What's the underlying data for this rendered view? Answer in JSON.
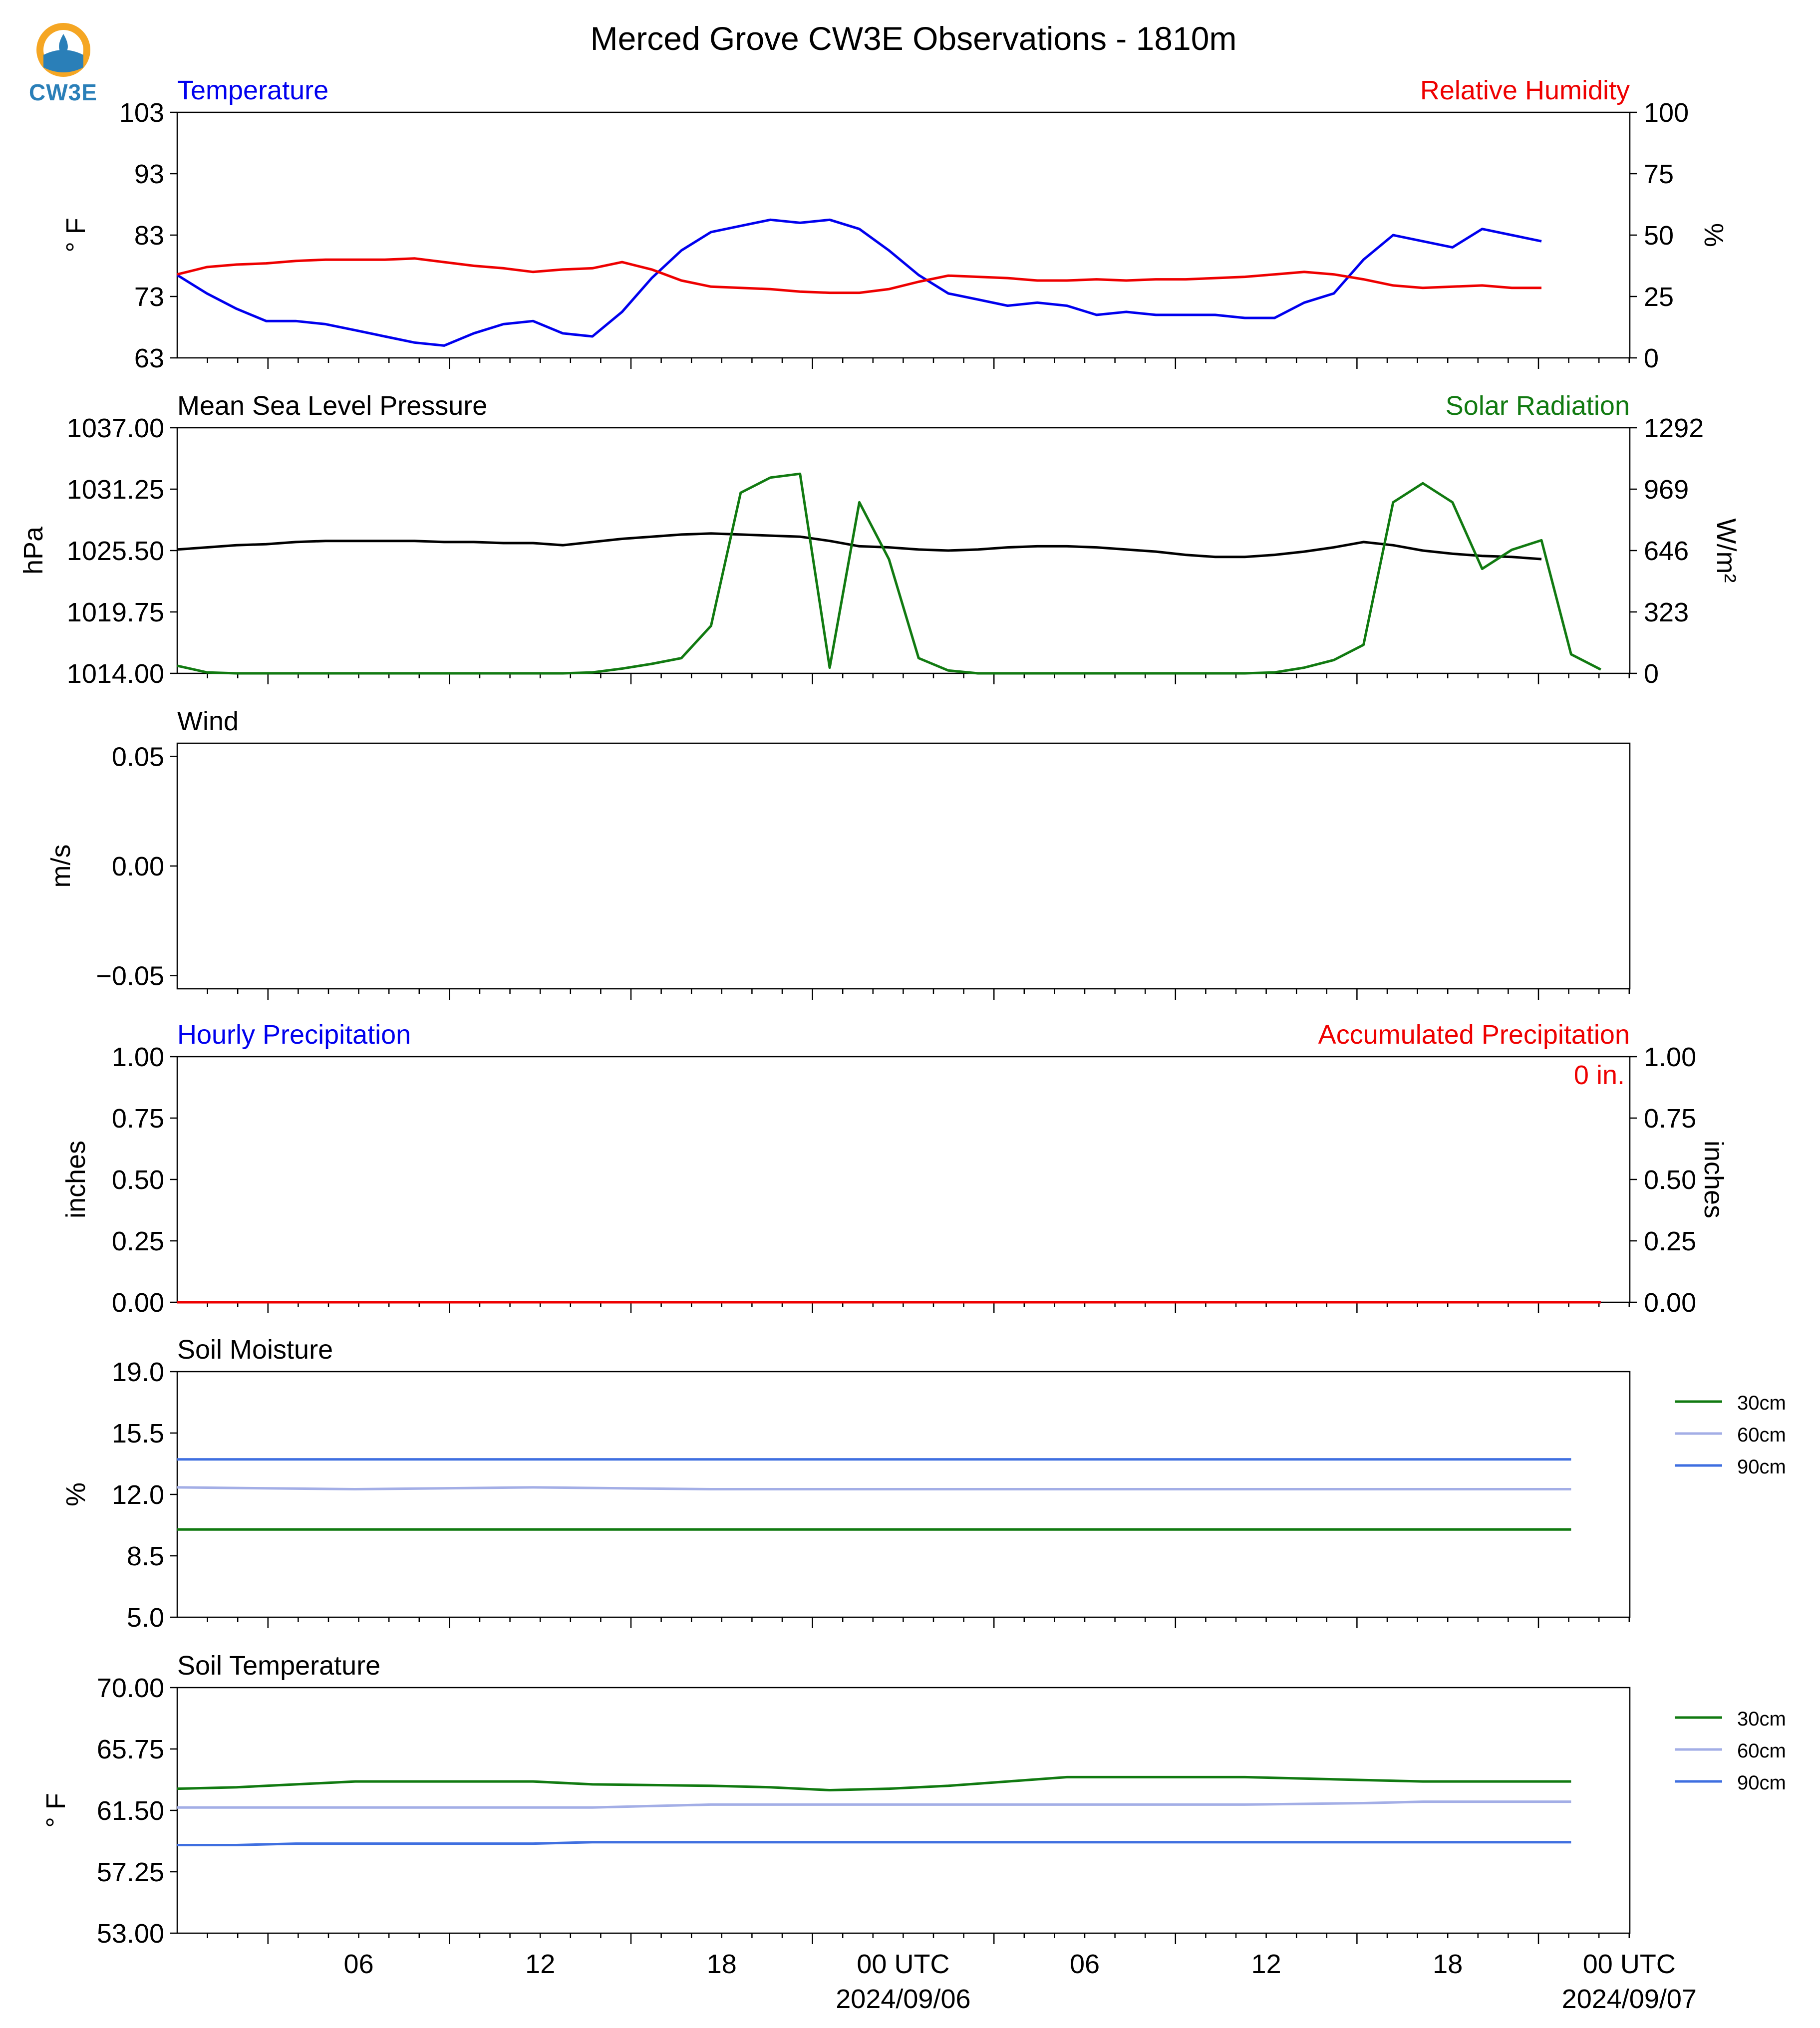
{
  "figure": {
    "title": "Merced Grove CW3E Observations - 1810m",
    "logo_text": "CW3E",
    "x_ticks": [
      "06",
      "12",
      "18",
      "00 UTC",
      "06",
      "12",
      "18",
      "00 UTC"
    ],
    "x_date_labels": [
      "2024/09/06",
      "2024/09/07"
    ]
  },
  "colors": {
    "blue": "#0000ee",
    "red": "#ee0000",
    "green": "#117a11",
    "black": "#000000",
    "lavender": "#a3aee6",
    "royal": "#3f6fe0",
    "logo_orange": "#f5a623",
    "logo_blue": "#2a7fb8"
  },
  "chart_data": [
    {
      "type": "line",
      "panel": "temperature_rh",
      "left_title": "Temperature",
      "right_title": "Relative Humidity",
      "ylabel": "° F",
      "ylabel_right": "%",
      "ylim": [
        63,
        103
      ],
      "ylim_right": [
        0,
        100
      ],
      "yticks": [
        "103",
        "93",
        "83",
        "73",
        "63"
      ],
      "yticks_right": [
        "100",
        "75",
        "50",
        "25",
        "0"
      ],
      "x_hours": [
        0,
        1,
        2,
        3,
        4,
        5,
        6,
        7,
        8,
        9,
        10,
        11,
        12,
        13,
        14,
        15,
        16,
        17,
        18,
        19,
        20,
        21,
        22,
        23,
        24,
        25,
        26,
        27,
        28,
        29,
        30,
        31,
        32,
        33,
        34,
        35,
        36,
        37,
        38,
        39,
        40,
        41,
        42,
        43,
        44,
        45,
        46,
        47,
        48
      ],
      "series": [
        {
          "name": "Temperature",
          "axis": "left",
          "color": "blue",
          "values": [
            76.5,
            73.5,
            71,
            69,
            69,
            68.5,
            67.5,
            66.5,
            65.5,
            65,
            67,
            68.5,
            69,
            67,
            66.5,
            70.5,
            76,
            80.5,
            83.5,
            84.5,
            85.5,
            85,
            85.5,
            84,
            80.5,
            76.5,
            73.5,
            72.5,
            71.5,
            72,
            71.5,
            70,
            70.5,
            70,
            70,
            70,
            69.5,
            69.5,
            72,
            73.5,
            79,
            83,
            82,
            81,
            84,
            83,
            82,
            null,
            79.5
          ]
        },
        {
          "name": "Relative Humidity",
          "axis": "right",
          "color": "red",
          "values": [
            34,
            37,
            38,
            38.5,
            39.5,
            40,
            40,
            40,
            40.5,
            39,
            37.5,
            36.5,
            35,
            36,
            36.5,
            39,
            36,
            31.5,
            29,
            28.5,
            28,
            27,
            26.5,
            26.5,
            28,
            31,
            33.5,
            33,
            32.5,
            31.5,
            31.5,
            32,
            31.5,
            32,
            32,
            32.5,
            33,
            34,
            35,
            34,
            32,
            29.5,
            28.5,
            29,
            29.5,
            28.5,
            28.5,
            null,
            29
          ]
        }
      ]
    },
    {
      "type": "line",
      "panel": "pressure_solar",
      "left_title": "Mean Sea Level Pressure",
      "right_title": "Solar Radiation",
      "ylabel": "hPa",
      "ylabel_right": "W/m²",
      "ylim": [
        1014,
        1037
      ],
      "ylim_right": [
        0,
        1292
      ],
      "yticks": [
        "1037.00",
        "1031.25",
        "1025.50",
        "1019.75",
        "1014.00"
      ],
      "yticks_right": [
        "1292",
        "969",
        "646",
        "323",
        "0"
      ],
      "x_hours": [
        0,
        1,
        2,
        3,
        4,
        5,
        6,
        7,
        8,
        9,
        10,
        11,
        12,
        13,
        14,
        15,
        16,
        17,
        18,
        19,
        20,
        21,
        22,
        23,
        24,
        25,
        26,
        27,
        28,
        29,
        30,
        31,
        32,
        33,
        34,
        35,
        36,
        37,
        38,
        39,
        40,
        41,
        42,
        43,
        44,
        45,
        46,
        47,
        48
      ],
      "series": [
        {
          "name": "Mean Sea Level Pressure",
          "axis": "left",
          "color": "black",
          "values": [
            1025.6,
            1025.8,
            1026.0,
            1026.1,
            1026.3,
            1026.4,
            1026.4,
            1026.4,
            1026.4,
            1026.3,
            1026.3,
            1026.2,
            1026.2,
            1026.0,
            1026.3,
            1026.6,
            1026.8,
            1027.0,
            1027.1,
            1027.0,
            1026.9,
            1026.8,
            1026.4,
            1025.9,
            1025.8,
            1025.6,
            1025.5,
            1025.6,
            1025.8,
            1025.9,
            1025.9,
            1025.8,
            1025.6,
            1025.4,
            1025.1,
            1024.9,
            1024.9,
            1025.1,
            1025.4,
            1025.8,
            1026.3,
            1026.0,
            1025.5,
            1025.2,
            1025.0,
            1024.9,
            1024.7,
            null,
            1024.2
          ]
        },
        {
          "name": "Solar Radiation",
          "axis": "right",
          "color": "green",
          "values": [
            40,
            5,
            0,
            0,
            0,
            0,
            0,
            0,
            0,
            0,
            0,
            0,
            0,
            0,
            5,
            25,
            50,
            80,
            250,
            950,
            1030,
            1050,
            30,
            900,
            600,
            80,
            15,
            0,
            0,
            0,
            0,
            0,
            0,
            0,
            0,
            0,
            0,
            5,
            30,
            70,
            150,
            900,
            1000,
            900,
            550,
            650,
            700,
            100,
            20
          ]
        }
      ]
    },
    {
      "type": "line",
      "panel": "wind",
      "left_title": "Wind",
      "ylabel": "m/s",
      "ylim": [
        -0.056,
        0.056
      ],
      "yticks": [
        "0.05",
        "0.00",
        "−0.05"
      ],
      "series": []
    },
    {
      "type": "line",
      "panel": "precipitation",
      "left_title": "Hourly Precipitation",
      "right_title": "Accumulated Precipitation",
      "annotation": "0 in.",
      "ylabel": "inches",
      "ylabel_right": "inches",
      "ylim": [
        0,
        1
      ],
      "ylim_right": [
        0,
        1
      ],
      "yticks": [
        "1.00",
        "0.75",
        "0.50",
        "0.25",
        "0.00"
      ],
      "yticks_right": [
        "1.00",
        "0.75",
        "0.50",
        "0.25",
        "0.00"
      ],
      "x_hours": [
        0,
        48
      ],
      "series": [
        {
          "name": "Hourly Precipitation",
          "axis": "left",
          "color": "blue",
          "values": [
            0,
            0
          ]
        },
        {
          "name": "Accumulated Precipitation",
          "axis": "right",
          "color": "red",
          "values": [
            0,
            0
          ]
        }
      ]
    },
    {
      "type": "line",
      "panel": "soil_moisture",
      "left_title": "Soil Moisture",
      "ylabel": "%",
      "ylim": [
        5,
        19
      ],
      "yticks": [
        "19.0",
        "15.5",
        "12.0",
        "8.5",
        "5.0"
      ],
      "legend": "right",
      "x_hours": [
        0,
        6,
        12,
        18,
        24,
        30,
        36,
        42,
        47
      ],
      "series": [
        {
          "name": "30cm",
          "color": "green",
          "values": [
            10.0,
            10.0,
            10.0,
            10.0,
            10.0,
            10.0,
            10.0,
            10.0,
            10.0
          ]
        },
        {
          "name": "60cm",
          "color": "lavender",
          "values": [
            12.4,
            12.3,
            12.4,
            12.3,
            12.3,
            12.3,
            12.3,
            12.3,
            12.3
          ]
        },
        {
          "name": "90cm",
          "color": "royal",
          "values": [
            14.0,
            14.0,
            14.0,
            14.0,
            14.0,
            14.0,
            14.0,
            14.0,
            14.0
          ]
        }
      ]
    },
    {
      "type": "line",
      "panel": "soil_temperature",
      "left_title": "Soil Temperature",
      "ylabel": "° F",
      "ylim": [
        53,
        70
      ],
      "yticks": [
        "70.00",
        "65.75",
        "61.50",
        "57.25",
        "53.00"
      ],
      "legend": "right",
      "x_hours": [
        0,
        2,
        4,
        6,
        12,
        14,
        18,
        20,
        22,
        24,
        26,
        28,
        30,
        36,
        40,
        42,
        47
      ],
      "series": [
        {
          "name": "30cm",
          "color": "green",
          "values": [
            63.0,
            63.1,
            63.3,
            63.5,
            63.5,
            63.3,
            63.2,
            63.1,
            62.9,
            63.0,
            63.2,
            63.5,
            63.8,
            63.8,
            63.6,
            63.5,
            63.5
          ]
        },
        {
          "name": "60cm",
          "color": "lavender",
          "values": [
            61.7,
            61.7,
            61.7,
            61.7,
            61.7,
            61.7,
            61.9,
            61.9,
            61.9,
            61.9,
            61.9,
            61.9,
            61.9,
            61.9,
            62.0,
            62.1,
            62.1
          ]
        },
        {
          "name": "90cm",
          "color": "royal",
          "values": [
            59.1,
            59.1,
            59.2,
            59.2,
            59.2,
            59.3,
            59.3,
            59.3,
            59.3,
            59.3,
            59.3,
            59.3,
            59.3,
            59.3,
            59.3,
            59.3,
            59.3
          ]
        }
      ]
    }
  ]
}
